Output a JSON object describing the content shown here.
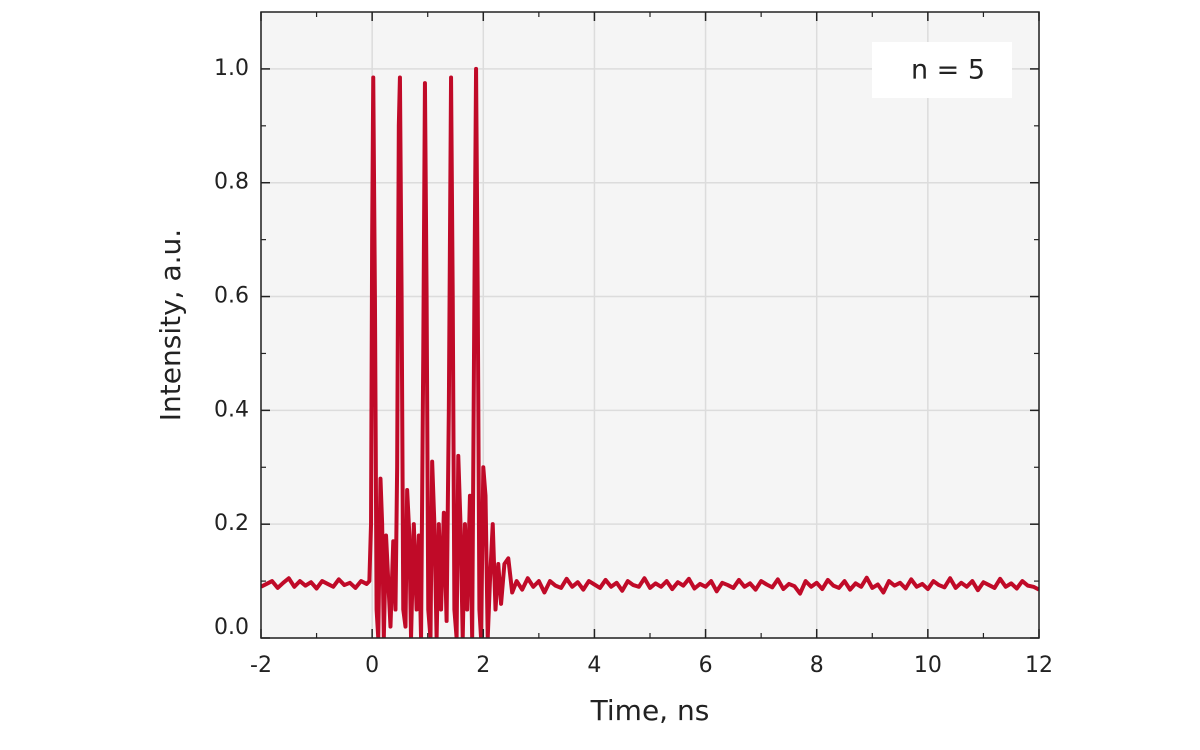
{
  "chart_data": {
    "type": "line",
    "xlabel": "Time, ns",
    "ylabel": "Intensity, a.u.",
    "annotation": "n = 5",
    "xlim": [
      -2,
      12
    ],
    "ylim": [
      0,
      1.1
    ],
    "xticks": [
      -2,
      0,
      2,
      4,
      6,
      8,
      10,
      12
    ],
    "xticks_minor": [
      -1,
      1,
      3,
      5,
      7,
      9,
      11
    ],
    "yticks": [
      {
        "value": 0,
        "label": "0.0"
      },
      0.2,
      0.4,
      0.6,
      0.8,
      {
        "value": 1,
        "label": "1.0"
      }
    ],
    "yticks_minor": [
      0.1,
      0.3,
      0.5,
      0.7,
      0.9
    ],
    "grid": true,
    "x": [
      -2.0,
      -1.9,
      -1.8,
      -1.7,
      -1.6,
      -1.5,
      -1.4,
      -1.3,
      -1.2,
      -1.1,
      -1.0,
      -0.9,
      -0.8,
      -0.7,
      -0.6,
      -0.5,
      -0.4,
      -0.3,
      -0.2,
      -0.1,
      -0.05,
      -0.02,
      0.0,
      0.02,
      0.05,
      0.08,
      0.11,
      0.15,
      0.18,
      0.21,
      0.25,
      0.29,
      0.33,
      0.38,
      0.42,
      0.45,
      0.48,
      0.5,
      0.53,
      0.56,
      0.6,
      0.63,
      0.67,
      0.7,
      0.75,
      0.8,
      0.84,
      0.88,
      0.92,
      0.95,
      0.98,
      1.01,
      1.05,
      1.08,
      1.12,
      1.16,
      1.2,
      1.24,
      1.29,
      1.34,
      1.38,
      1.42,
      1.45,
      1.48,
      1.52,
      1.55,
      1.59,
      1.63,
      1.67,
      1.71,
      1.76,
      1.8,
      1.84,
      1.87,
      1.9,
      1.93,
      1.96,
      2.0,
      2.04,
      2.08,
      2.12,
      2.17,
      2.22,
      2.27,
      2.32,
      2.38,
      2.45,
      2.52,
      2.6,
      2.7,
      2.8,
      2.9,
      3.0,
      3.1,
      3.2,
      3.3,
      3.4,
      3.5,
      3.6,
      3.7,
      3.8,
      3.9,
      4.0,
      4.1,
      4.2,
      4.3,
      4.4,
      4.5,
      4.6,
      4.7,
      4.8,
      4.9,
      5.0,
      5.1,
      5.2,
      5.3,
      5.4,
      5.5,
      5.6,
      5.7,
      5.8,
      5.9,
      6.0,
      6.1,
      6.2,
      6.3,
      6.4,
      6.5,
      6.6,
      6.7,
      6.8,
      6.9,
      7.0,
      7.1,
      7.2,
      7.3,
      7.4,
      7.5,
      7.6,
      7.7,
      7.8,
      7.9,
      8.0,
      8.1,
      8.2,
      8.3,
      8.4,
      8.5,
      8.6,
      8.7,
      8.8,
      8.9,
      9.0,
      9.1,
      9.2,
      9.3,
      9.4,
      9.5,
      9.6,
      9.7,
      9.8,
      9.9,
      10.0,
      10.1,
      10.2,
      10.3,
      10.4,
      10.5,
      10.6,
      10.7,
      10.8,
      10.9,
      11.0,
      11.1,
      11.2,
      11.3,
      11.4,
      11.5,
      11.6,
      11.7,
      11.8,
      11.9,
      12.0
    ],
    "series": [
      {
        "name": "n = 5",
        "color": "#c00a28",
        "values": [
          0.09,
          0.095,
          0.1,
          0.088,
          0.097,
          0.105,
          0.09,
          0.1,
          0.092,
          0.098,
          0.087,
          0.1,
          0.095,
          0.09,
          0.103,
          0.093,
          0.097,
          0.088,
          0.1,
          0.095,
          0.1,
          0.2,
          0.7,
          0.985,
          0.6,
          0.05,
          0.0,
          0.28,
          0.2,
          0.0,
          0.18,
          0.1,
          0.02,
          0.17,
          0.05,
          0.3,
          0.9,
          0.985,
          0.6,
          0.05,
          0.02,
          0.26,
          0.18,
          0.0,
          0.2,
          0.05,
          0.18,
          0.0,
          0.5,
          0.975,
          0.6,
          0.05,
          0.0,
          0.31,
          0.2,
          0.0,
          0.2,
          0.05,
          0.22,
          0.03,
          0.4,
          0.985,
          0.6,
          0.05,
          0.0,
          0.32,
          0.2,
          0.0,
          0.2,
          0.05,
          0.25,
          0.0,
          0.6,
          1.0,
          0.6,
          0.05,
          0.0,
          0.3,
          0.25,
          0.0,
          0.1,
          0.2,
          0.05,
          0.13,
          0.06,
          0.13,
          0.14,
          0.08,
          0.1,
          0.085,
          0.105,
          0.09,
          0.1,
          0.08,
          0.1,
          0.092,
          0.088,
          0.104,
          0.09,
          0.098,
          0.085,
          0.1,
          0.094,
          0.088,
          0.102,
          0.09,
          0.097,
          0.083,
          0.1,
          0.093,
          0.09,
          0.105,
          0.088,
          0.096,
          0.09,
          0.1,
          0.086,
          0.098,
          0.092,
          0.104,
          0.087,
          0.095,
          0.09,
          0.1,
          0.082,
          0.097,
          0.093,
          0.088,
          0.102,
          0.09,
          0.096,
          0.085,
          0.1,
          0.094,
          0.089,
          0.103,
          0.086,
          0.095,
          0.091,
          0.078,
          0.1,
          0.09,
          0.097,
          0.086,
          0.102,
          0.092,
          0.088,
          0.1,
          0.085,
          0.096,
          0.09,
          0.106,
          0.088,
          0.094,
          0.08,
          0.1,
          0.092,
          0.097,
          0.087,
          0.103,
          0.09,
          0.095,
          0.086,
          0.1,
          0.093,
          0.089,
          0.105,
          0.088,
          0.097,
          0.09,
          0.1,
          0.084,
          0.098,
          0.093,
          0.088,
          0.104,
          0.09,
          0.096,
          0.087,
          0.1,
          0.092,
          0.09,
          0.085
        ]
      }
    ]
  }
}
